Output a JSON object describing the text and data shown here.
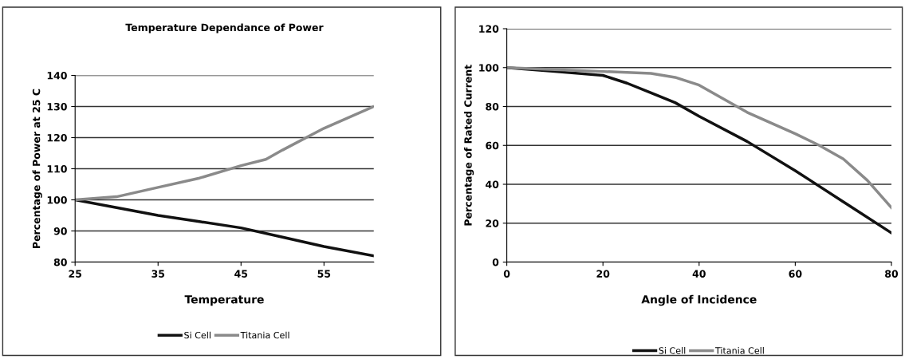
{
  "chart_data": [
    {
      "type": "line",
      "title": "Temperature Dependance of Power",
      "xlabel": "Temperature",
      "ylabel": "Percentage of Power at 25 C",
      "xlim": [
        25,
        61
      ],
      "xticks": [
        25,
        35,
        45,
        55
      ],
      "ylim": [
        80,
        140
      ],
      "yticks": [
        80,
        90,
        100,
        110,
        120,
        130,
        140
      ],
      "grid": "y",
      "legend": "bottom",
      "marker": "none",
      "line_style": "solid",
      "series": [
        {
          "name": "Si Cell",
          "color": "#111111",
          "x": [
            25,
            30,
            35,
            40,
            45,
            50,
            55,
            61
          ],
          "values": [
            100,
            97.5,
            95,
            93,
            91,
            88,
            85,
            82
          ]
        },
        {
          "name": "Titania Cell",
          "color": "#8a8a8a",
          "x": [
            25,
            30,
            35,
            40,
            45,
            48,
            50,
            55,
            61
          ],
          "values": [
            100,
            101,
            104,
            107,
            111,
            113,
            116,
            123,
            130
          ]
        }
      ]
    },
    {
      "type": "line",
      "xlabel": "Angle of Incidence",
      "ylabel": "Percentage of Rated Current",
      "xlim": [
        0,
        80
      ],
      "xticks": [
        0,
        20,
        40,
        60,
        80
      ],
      "ylim": [
        0,
        120
      ],
      "yticks": [
        0,
        20,
        40,
        60,
        80,
        100,
        120
      ],
      "grid": "y",
      "legend": "bottom",
      "marker": "none",
      "line_style": "solid",
      "series": [
        {
          "name": "Si Cell",
          "color": "#111111",
          "x": [
            0,
            10,
            20,
            25,
            30,
            35,
            40,
            50,
            60,
            70,
            80
          ],
          "values": [
            100,
            98,
            96,
            92,
            87,
            82,
            75,
            62,
            47,
            31,
            15
          ]
        },
        {
          "name": "Titania Cell",
          "color": "#8a8a8a",
          "x": [
            0,
            10,
            20,
            30,
            35,
            40,
            45,
            50,
            60,
            65,
            70,
            75,
            80
          ],
          "values": [
            100,
            99,
            98,
            97,
            95,
            91,
            84,
            77,
            66,
            60,
            53,
            42,
            28
          ]
        }
      ]
    }
  ]
}
